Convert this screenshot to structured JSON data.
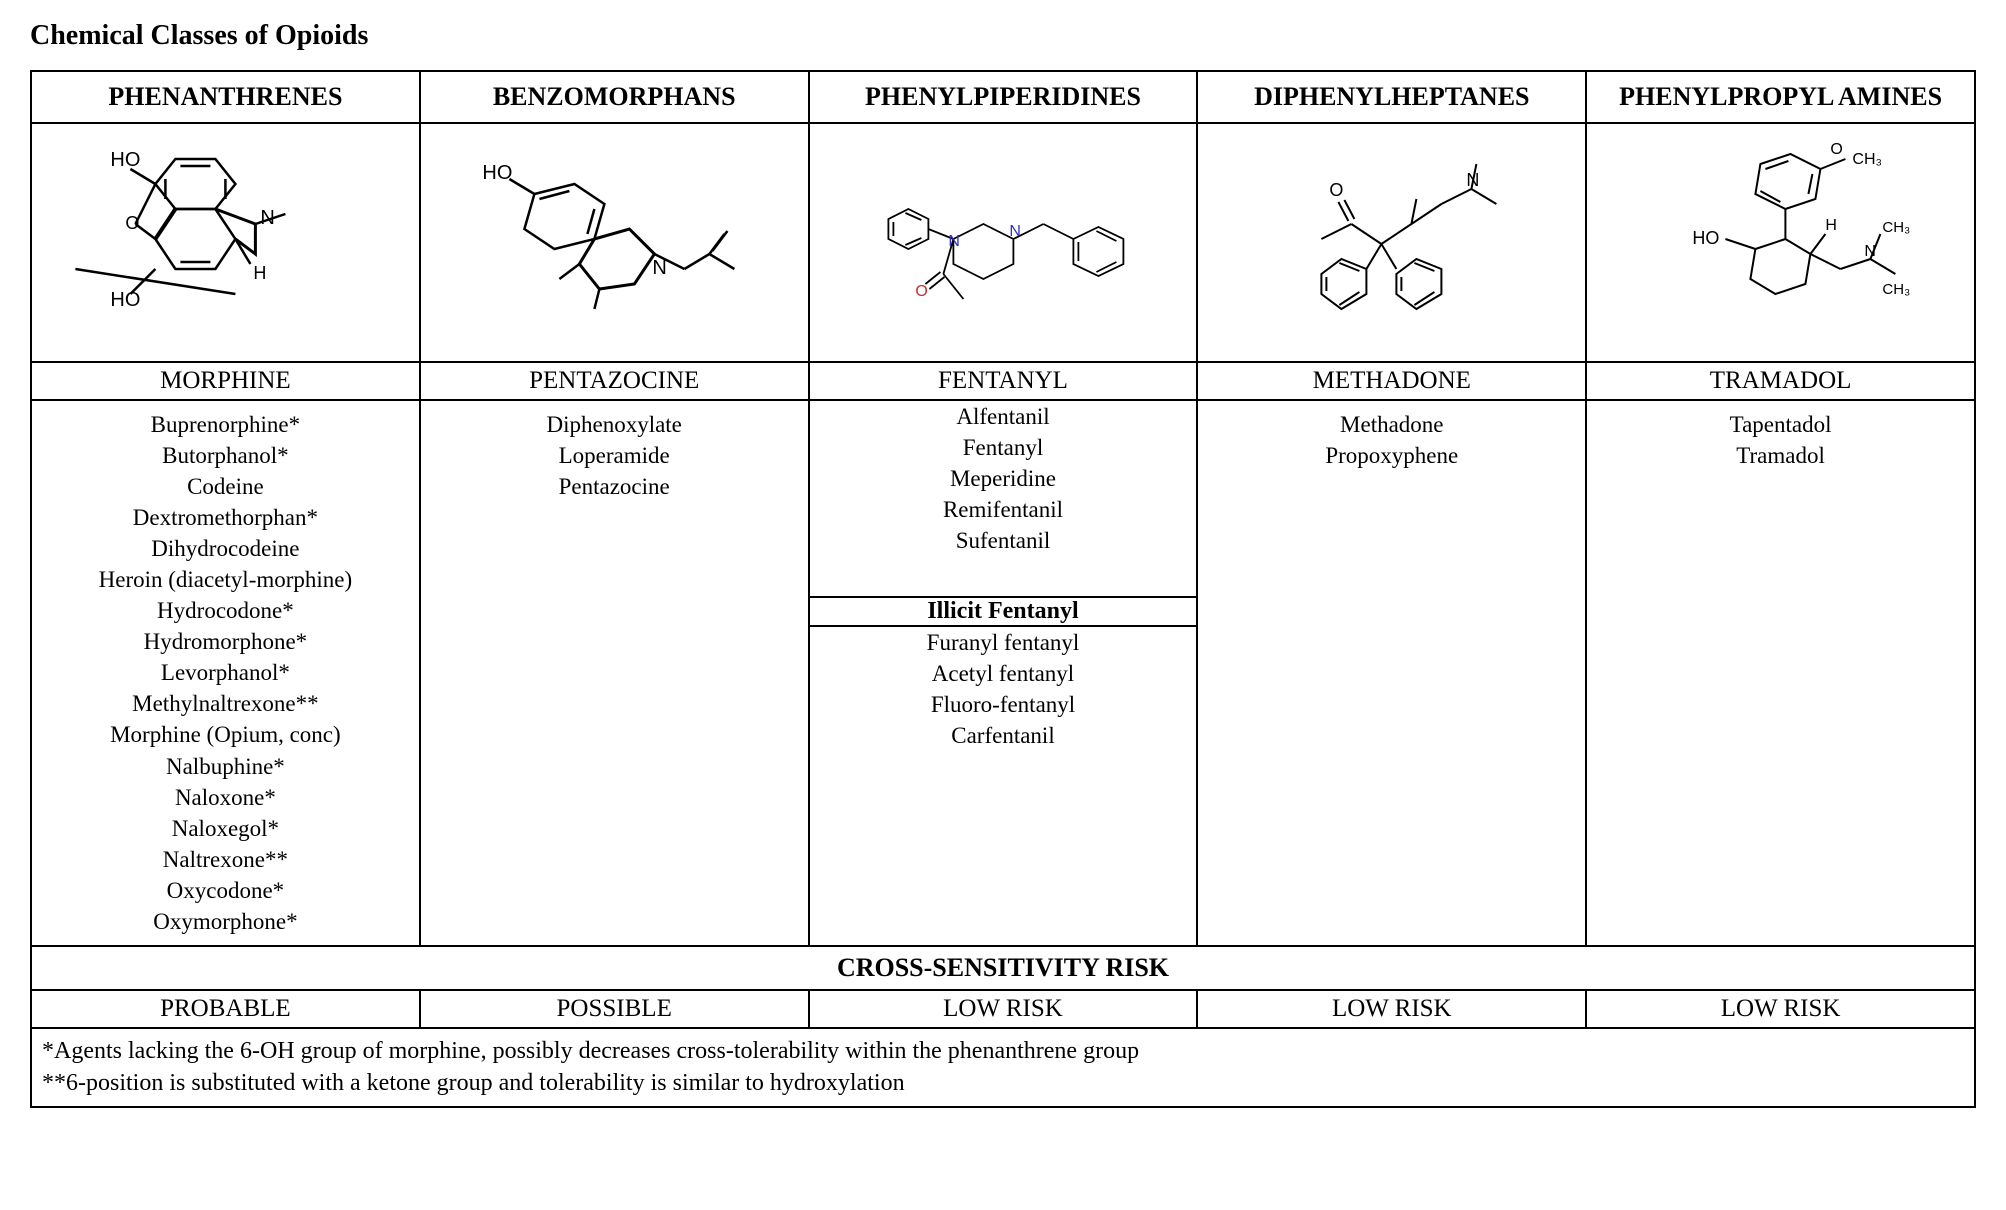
{
  "title": "Chemical Classes of Opioids",
  "columns": [
    {
      "header": "PHENANTHRENES",
      "example": "MORPHINE",
      "drugs": [
        "Buprenorphine*",
        "Butorphanol*",
        "Codeine",
        "Dextromethorphan*",
        "Dihydrocodeine",
        "Heroin (diacetyl-morphine)",
        "Hydrocodone*",
        "Hydromorphone*",
        "Levorphanol*",
        "Methylnaltrexone**",
        "Morphine (Opium, conc)",
        "Nalbuphine*",
        "Naloxone*",
        "Naloxegol*",
        "Naltrexone**",
        "Oxycodone*",
        "Oxymorphone*"
      ],
      "risk": "PROBABLE"
    },
    {
      "header": "BENZOMORPHANS",
      "example": "PENTAZOCINE",
      "drugs": [
        "Diphenoxylate",
        "Loperamide",
        "Pentazocine"
      ],
      "risk": "POSSIBLE"
    },
    {
      "header": "PHENYLPIPERIDINES",
      "example": "FENTANYL",
      "drugs": [
        "Alfentanil",
        "Fentanyl",
        "Meperidine",
        "Remifentanil",
        "Sufentanil"
      ],
      "sub_header": "Illicit Fentanyl",
      "sub_drugs": [
        "Furanyl fentanyl",
        "Acetyl fentanyl",
        "Fluoro-fentanyl",
        "Carfentanil"
      ],
      "risk": "LOW RISK"
    },
    {
      "header": "DIPHENYLHEPTANES",
      "example": "METHADONE",
      "drugs": [
        "Methadone",
        "Propoxyphene"
      ],
      "risk": "LOW RISK"
    },
    {
      "header": "PHENYLPROPYL AMINES",
      "example": "TRAMADOL",
      "drugs": [
        "Tapentadol",
        "Tramadol"
      ],
      "risk": "LOW RISK"
    }
  ],
  "cross_sensitivity_header": "CROSS-SENSITIVITY RISK",
  "footnote1": "*Agents lacking the 6-OH group of morphine, possibly decreases cross-tolerability within the phenanthrene group",
  "footnote2": "**6-position is substituted with a ketone group and tolerability is similar to hydroxylation",
  "structure_labels": {
    "morphine_ho1": "HO",
    "morphine_ho2": "HO",
    "morphine_n": "N",
    "morphine_h": "H",
    "morphine_o": "O",
    "pentazocine_ho": "HO",
    "pentazocine_n": "N",
    "fentanyl_n1": "N",
    "fentanyl_n2": "N",
    "fentanyl_o": "O",
    "methadone_o": "O",
    "methadone_n": "N",
    "tramadol_o": "O",
    "tramadol_ch3_1": "CH₃",
    "tramadol_ho": "HO",
    "tramadol_h": "H",
    "tramadol_n": "N",
    "tramadol_ch3_2": "CH₃",
    "tramadol_ch3_3": "CH₃"
  },
  "colors": {
    "bg": "#ffffff",
    "text": "#000000",
    "border": "#000000",
    "n_atom": "#3030c0",
    "o_atom": "#c03030"
  }
}
